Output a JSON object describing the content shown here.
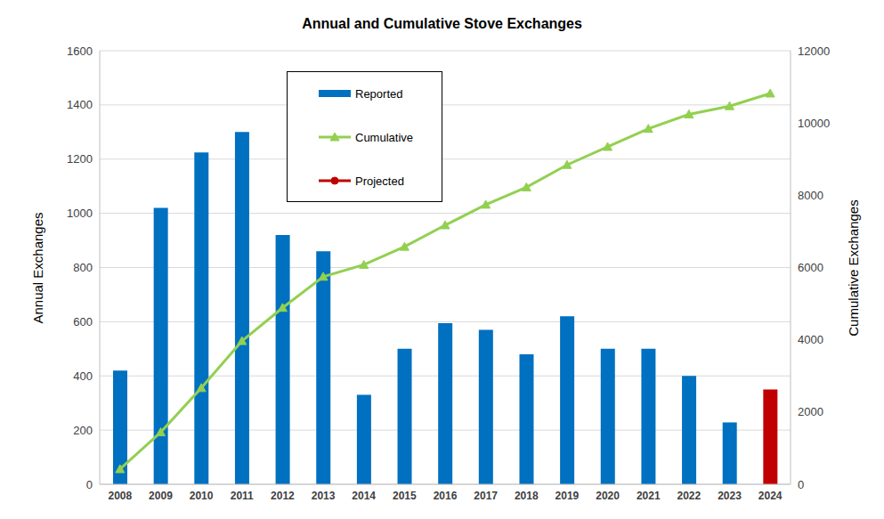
{
  "chart_data": {
    "type": "bar",
    "title": "Annual and Cumulative Stove Exchanges",
    "categories": [
      "2008",
      "2009",
      "2010",
      "2011",
      "2012",
      "2013",
      "2014",
      "2015",
      "2016",
      "2017",
      "2018",
      "2019",
      "2020",
      "2021",
      "2022",
      "2023",
      "2024"
    ],
    "y_label": "Annual Exchanges",
    "y2_label": "Cumulative Exchanges",
    "ylim": [
      0,
      1600
    ],
    "yticks": [
      0,
      200,
      400,
      600,
      800,
      1000,
      1200,
      1400,
      1600
    ],
    "y2lim": [
      0,
      12000
    ],
    "y2ticks": [
      0,
      2000,
      4000,
      6000,
      8000,
      10000,
      12000
    ],
    "grid": true,
    "legend": "upper left",
    "series": [
      {
        "name": "Reported",
        "type": "bar",
        "color": "#0070C0",
        "values": [
          420,
          1020,
          1225,
          1300,
          920,
          860,
          330,
          500,
          595,
          570,
          480,
          620,
          500,
          500,
          400,
          228,
          null
        ]
      },
      {
        "name": "Cumulative",
        "type": "line",
        "color": "#92D050",
        "marker": "triangle",
        "axis": "y2",
        "values": [
          420,
          1440,
          2665,
          3965,
          4885,
          5745,
          6075,
          6575,
          7170,
          7740,
          8220,
          8840,
          9340,
          9840,
          10240,
          10468,
          10818
        ]
      },
      {
        "name": "Projected",
        "type": "bar",
        "color": "#C00000",
        "marker": "circle",
        "values": [
          null,
          null,
          null,
          null,
          null,
          null,
          null,
          null,
          null,
          null,
          null,
          null,
          null,
          null,
          null,
          null,
          350
        ]
      }
    ]
  }
}
